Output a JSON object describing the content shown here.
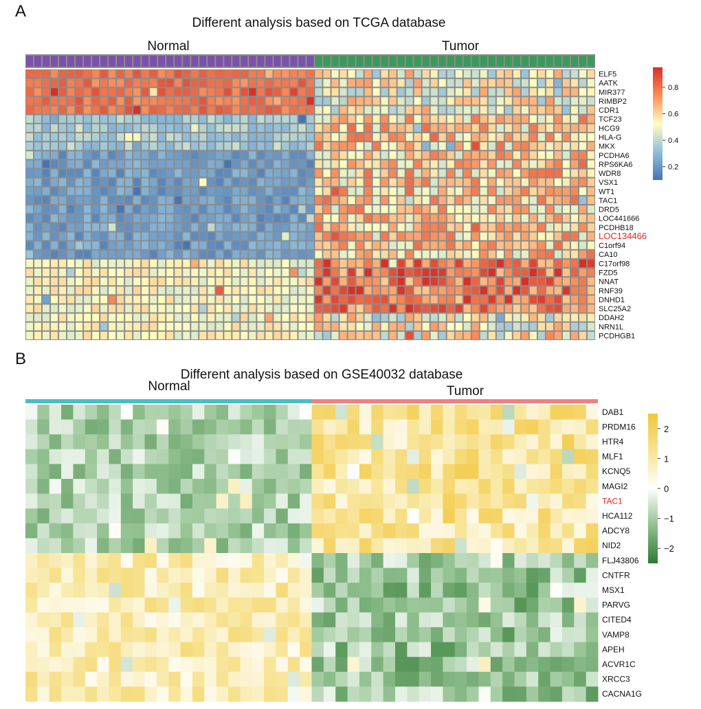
{
  "figure": {
    "panel_a_label": "A",
    "panel_b_label": "B"
  },
  "chart_data": [
    {
      "type": "heatmap",
      "panel": "A",
      "title": "Different analysis based on TCGA database",
      "groups": [
        {
          "label": "Normal",
          "count": 35,
          "color": "#7b52ab"
        },
        {
          "label": "Tumor",
          "count": 34,
          "color": "#3b9a5b"
        }
      ],
      "genes": [
        "ELF5",
        "AATK",
        "MIR377",
        "RIMBP2",
        "CDR1",
        "TCF23",
        "HCG9",
        "HLA-G",
        "MKX",
        "PCDHA6",
        "RPS6KA6",
        "WDR8",
        "VSX1",
        "WT1",
        "TAC1",
        "DRD5",
        "LOC441666",
        "PCDHB18",
        "LOC134466",
        "C1orf94",
        "CA10",
        "C17orf98",
        "FZD5",
        "NNAT",
        "RNF39",
        "DNHD1",
        "SLC25A2",
        "DDAH2",
        "NRN1L",
        "PCDHGB1"
      ],
      "highlight_gene": "LOC134466",
      "highlight_color": "#e8251f",
      "row_pattern_normal": [
        "high",
        "high",
        "high",
        "high",
        "high",
        "mid-low",
        "mid-low",
        "mid-low",
        "mid-low",
        "low",
        "low",
        "low",
        "low",
        "low",
        "low",
        "low",
        "low",
        "low",
        "low",
        "low",
        "low",
        "mid",
        "mid",
        "mid",
        "mid",
        "mid",
        "mid",
        "mid",
        "mid",
        "mid"
      ],
      "row_pattern_tumor": [
        "mid",
        "mid",
        "mid",
        "mid",
        "mid",
        "mid-high",
        "mid-high",
        "mid-high",
        "mid-high",
        "mid-high",
        "mid-high",
        "mid-high",
        "mid-high",
        "mid-high",
        "mid-high",
        "mid-high",
        "mid-high",
        "mid-high",
        "mid-high",
        "mid-high",
        "mid-high",
        "high",
        "high",
        "high",
        "high",
        "high",
        "high",
        "mid",
        "mid",
        "mid"
      ],
      "legend": {
        "ticks": [
          "0.8",
          "0.6",
          "0.4",
          "0.2"
        ],
        "range": [
          0.1,
          0.95
        ]
      },
      "colors": {
        "low": "#4575b4",
        "mid": "#ffffbf",
        "high": "#d73027",
        "grid": "#8c8c8c"
      }
    },
    {
      "type": "heatmap",
      "panel": "B",
      "title": "Different analysis based on GSE40032 database",
      "groups": [
        {
          "label": "Normal",
          "count": 24,
          "color": "#48bfc4"
        },
        {
          "label": "Tumor",
          "count": 24,
          "color": "#f08080"
        }
      ],
      "genes": [
        "DAB1",
        "PRDM16",
        "HTR4",
        "MLF1",
        "KCNQ5",
        "MAGI2",
        "TAC1",
        "HCA112",
        "ADCY8",
        "NID2",
        "FLJ43806",
        "CNTFR",
        "MSX1",
        "PARVG",
        "CITED4",
        "VAMP8",
        "APEH",
        "ACVR1C",
        "XRCC3",
        "CACNA1G"
      ],
      "highlight_gene": "TAC1",
      "highlight_color": "#e8251f",
      "up_in_tumor_rows": 10,
      "legend": {
        "ticks": [
          "2",
          "1",
          "0",
          "−1",
          "−2"
        ],
        "tick_values": [
          2,
          1,
          0,
          -1,
          -2
        ],
        "range": [
          -2.5,
          2.5
        ]
      },
      "colors": {
        "low": "#2f7a32",
        "mid": "#ffffff",
        "high": "#f3c53a"
      }
    }
  ]
}
